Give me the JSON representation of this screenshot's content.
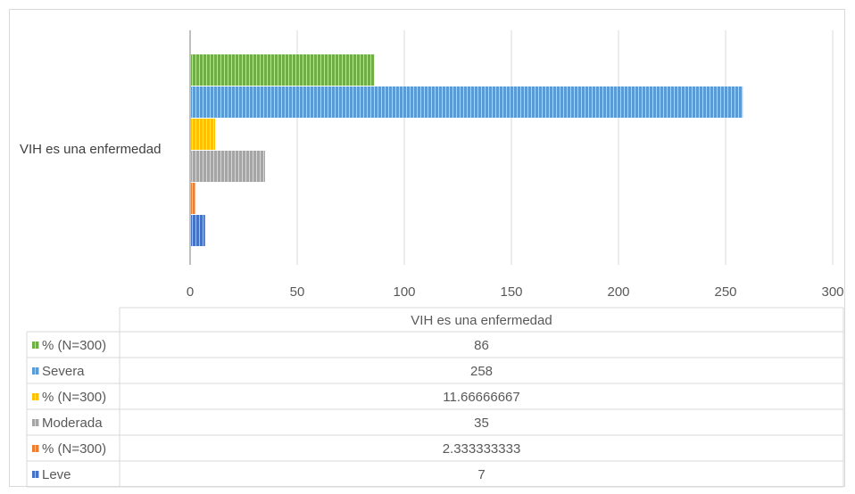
{
  "chart_data": {
    "type": "bar",
    "orientation": "horizontal",
    "categories": [
      "VIH es una enfermedad"
    ],
    "xlim": [
      0,
      300
    ],
    "xticks": [
      0,
      50,
      100,
      150,
      200,
      250,
      300
    ],
    "grid": true,
    "legend": "data table below chart",
    "series": [
      {
        "name": "% (N=300)",
        "values": [
          86
        ],
        "color": "#70ad47",
        "label": "86"
      },
      {
        "name": "Severa",
        "values": [
          258
        ],
        "color": "#5b9bd5",
        "label": "258"
      },
      {
        "name": "% (N=300)",
        "values": [
          11.66666667
        ],
        "color": "#ffc000",
        "label": "11.66666667"
      },
      {
        "name": "Moderada",
        "values": [
          35
        ],
        "color": "#a5a5a5",
        "label": "35"
      },
      {
        "name": "% (N=300)",
        "values": [
          2.333333333
        ],
        "color": "#ed7d31",
        "label": "2.333333333"
      },
      {
        "name": "Leve",
        "values": [
          7
        ],
        "color": "#4472c4",
        "label": "7"
      }
    ],
    "table_header": "VIH es una enfermedad"
  }
}
